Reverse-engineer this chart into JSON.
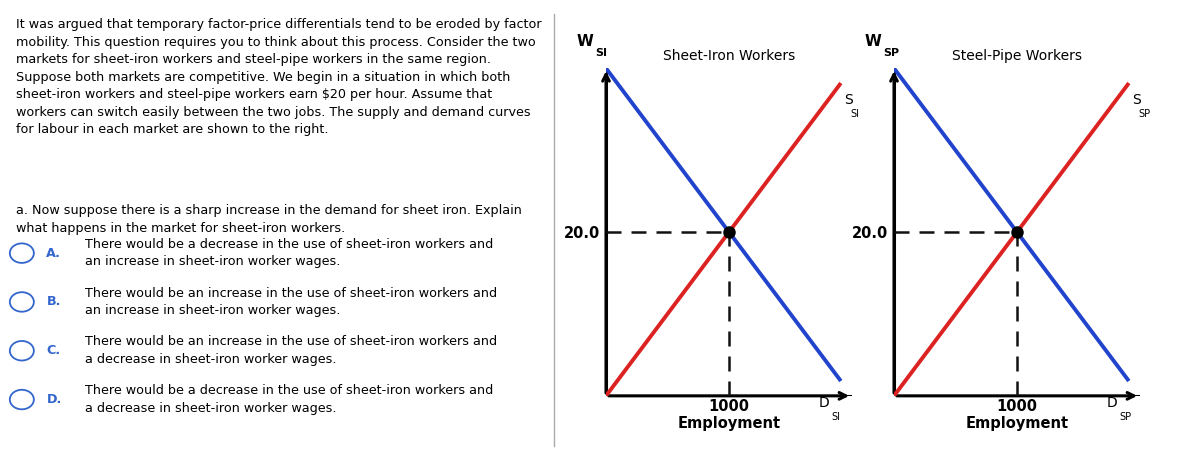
{
  "fig_width": 12.0,
  "fig_height": 4.55,
  "bg_color": "#ffffff",
  "top_bar_color": "#3ab5b0",
  "left_text_line1": "It was argued that temporary factor-price differentials tend to be eroded by factor",
  "left_text_line2": "mobility. This question requires you to think about this process. Consider the two",
  "left_text_line3": "markets for sheet-iron workers and steel-pipe workers in the same region.",
  "left_text_line4": "Suppose both markets are competitive. We begin in a situation in which both",
  "left_text_line5": "sheet-iron workers and steel-pipe workers earn $20 per hour. Assume that",
  "left_text_line6": "workers can switch easily between the two jobs. The supply and demand curves",
  "left_text_line7": "for labour in each market are shown to the right.",
  "question_text": "a. Now suppose there is a sharp increase in the demand for sheet iron. Explain\nwhat happens in the market for sheet-iron workers.",
  "options": [
    {
      "letter": "A.",
      "text": "There would be a decrease in the use of sheet-iron workers and\nan increase in sheet-iron worker wages."
    },
    {
      "letter": "B.",
      "text": "There would be an increase in the use of sheet-iron workers and\nan increase in sheet-iron worker wages."
    },
    {
      "letter": "C.",
      "text": "There would be an increase in the use of sheet-iron workers and\na decrease in sheet-iron worker wages."
    },
    {
      "letter": "D.",
      "text": "There would be a decrease in the use of sheet-iron workers and\na decrease in sheet-iron worker wages."
    }
  ],
  "chart1_title": "Sheet-Iron Workers",
  "chart1_ylabel": "W",
  "chart1_ylabel_sub": "SI",
  "chart1_supply_label": "S",
  "chart1_supply_sub": "SI",
  "chart1_demand_label": "D",
  "chart1_demand_sub": "SI",
  "chart2_title": "Steel-Pipe Workers",
  "chart2_ylabel": "W",
  "chart2_ylabel_sub": "SP",
  "chart2_supply_label": "S",
  "chart2_supply_sub": "SP",
  "chart2_demand_label": "D",
  "chart2_demand_sub": "SP",
  "equilibrium_wage": 20.0,
  "equilibrium_employment": 1000,
  "xlabel": "Employment",
  "supply_color": "#dd2222",
  "demand_color": "#2244cc",
  "dashed_color": "#111111",
  "option_circle_color": "#3366cc",
  "option_letter_color": "#3366cc",
  "separator_color": "#aaaaaa",
  "text_fontsize": 9.2,
  "option_fontsize": 9.2
}
